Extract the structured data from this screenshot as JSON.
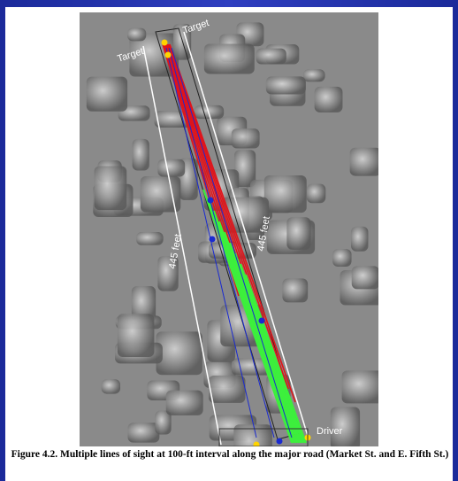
{
  "figure": {
    "labels": {
      "target_left": "Target",
      "target_top": "Target",
      "distance_left": "445 feet",
      "distance_right": "445 feet",
      "driver": "Driver"
    }
  },
  "caption": "Figure 4.2. Multiple lines of sight at 100-ft interval along the major road (Market St. and E. Fifth St.)"
}
